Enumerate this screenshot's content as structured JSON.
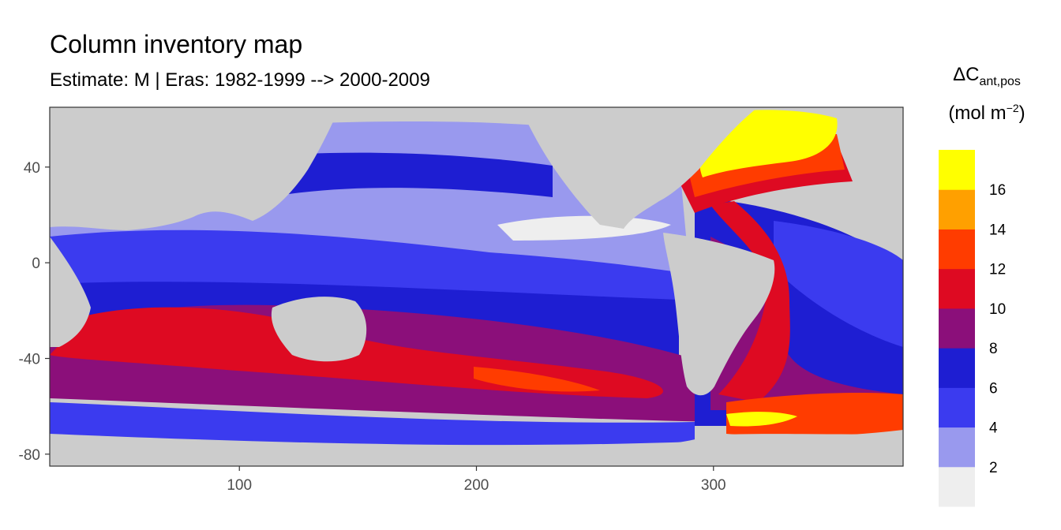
{
  "chart_data": {
    "type": "heatmap",
    "title": "Column inventory map",
    "subtitle": "Estimate: M  | Eras: 1982-1999 --> 2000-2009",
    "xlabel": "",
    "ylabel": "",
    "xlim": [
      20,
      380
    ],
    "ylim": [
      -85,
      65
    ],
    "x_ticks": [
      100,
      200,
      300
    ],
    "y_ticks": [
      40,
      0,
      -40,
      -80
    ],
    "x_tick_labels": [
      "100",
      "200",
      "300"
    ],
    "y_tick_labels": [
      "40",
      "0",
      "-40",
      "-80"
    ],
    "legend": {
      "title_main": "ΔC",
      "title_sub": "ant,pos",
      "unit_main": "mol m",
      "unit_sup": "−2",
      "position": "right",
      "breaks": [
        0,
        2,
        4,
        6,
        8,
        10,
        12,
        14,
        16,
        18
      ],
      "labels": [
        "2",
        "4",
        "6",
        "8",
        "10",
        "12",
        "14",
        "16"
      ],
      "colors": [
        "#eeeeee",
        "#9999ee",
        "#3b3bef",
        "#1e1ed2",
        "#8b0f7a",
        "#de0a22",
        "#ff3c00",
        "#ffa000",
        "#ffff00"
      ]
    },
    "land_color": "#cccccc",
    "grid": false
  }
}
